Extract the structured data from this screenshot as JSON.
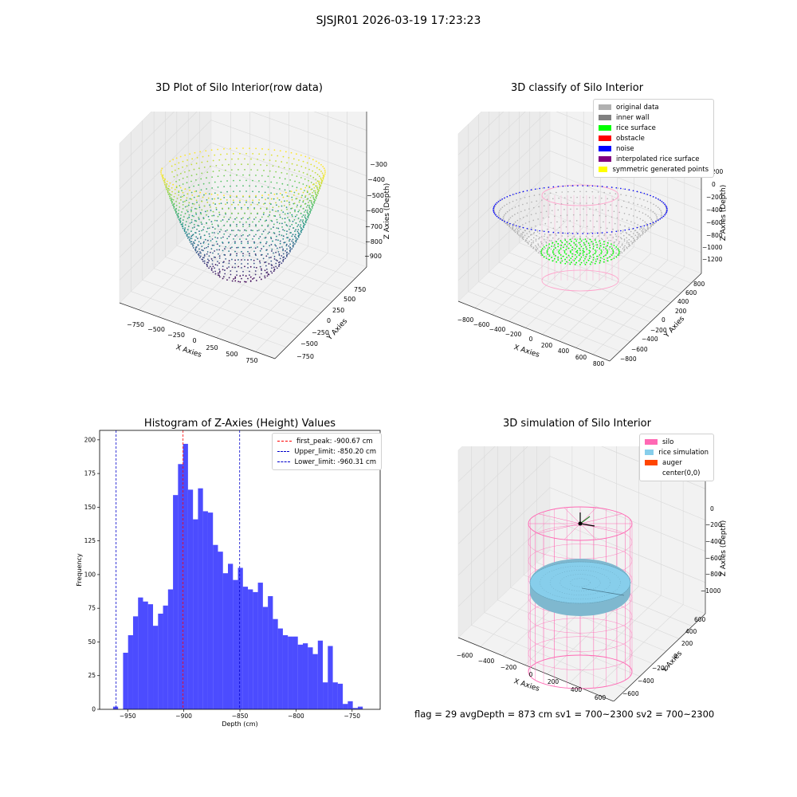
{
  "suptitle": "SJSJR01 2026-03-19 17:23:23",
  "footer": "flag = 29  avgDepth = 873 cm  sv1 = 700~2300  sv2 = 700~2300",
  "colors": {
    "histogram": "#0000ff",
    "first_peak": "#ff0000",
    "limits": "#0000cc",
    "original_data": "#b0b0b0",
    "inner_wall": "#808080",
    "rice_surface": "#00ff00",
    "obstacle": "#ff0000",
    "noise": "#0000ff",
    "interpolated_rice_surface": "#800080",
    "symmetric_generated_points": "#ffff00",
    "silo": "#ff69b4",
    "rice_simulation": "#87ceeb",
    "auger": "#ff4500"
  },
  "panels": {
    "raw": {
      "title": "3D Plot of Silo Interior(row data)",
      "xlabel": "X Axies",
      "ylabel": "Y Axies",
      "zlabel": "Z Axies (Depth)",
      "xticks": [
        "−750",
        "−500",
        "−250",
        "0",
        "250",
        "500",
        "750"
      ],
      "yticks": [
        "−750",
        "−500",
        "−250",
        "0",
        "250",
        "500",
        "750"
      ],
      "zticks": [
        "−300",
        "−400",
        "−500",
        "−600",
        "−700",
        "−800",
        "−900"
      ]
    },
    "classify": {
      "title": "3D classify of Silo Interior",
      "xlabel": "X Axies",
      "ylabel": "Y Axies",
      "zlabel": "Z Axies (Depth)",
      "xticks": [
        "−800",
        "−600",
        "−400",
        "−200",
        "0",
        "200",
        "400",
        "600",
        "800"
      ],
      "yticks": [
        "−800",
        "−600",
        "−400",
        "−200",
        "0",
        "200",
        "400",
        "600",
        "800"
      ],
      "zticks": [
        "200",
        "0",
        "−200",
        "−400",
        "−600",
        "−800",
        "−1000",
        "−1200"
      ],
      "legend": [
        {
          "label": "original data",
          "color": "#b0b0b0"
        },
        {
          "label": "inner wall",
          "color": "#808080"
        },
        {
          "label": "rice surface",
          "color": "#00ff00"
        },
        {
          "label": "obstacle",
          "color": "#ff0000"
        },
        {
          "label": "noise",
          "color": "#0000ff"
        },
        {
          "label": "interpolated rice surface",
          "color": "#800080"
        },
        {
          "label": "symmetric generated points",
          "color": "#ffff00"
        }
      ]
    },
    "simulation": {
      "title": "3D simulation of Silo Interior",
      "xlabel": "X Axies",
      "ylabel": "Y Axies",
      "zlabel": "Z Axies (Depth)",
      "xticks": [
        "−600",
        "−400",
        "−200",
        "0",
        "200",
        "400",
        "600"
      ],
      "yticks": [
        "−600",
        "−400",
        "−200",
        "0",
        "200",
        "400",
        "600"
      ],
      "zticks": [
        "0",
        "−200",
        "−400",
        "−600",
        "−800",
        "−1000"
      ],
      "legend": [
        {
          "label": "silo",
          "color": "#ff69b4"
        },
        {
          "label": "rice simulation",
          "color": "#87ceeb"
        },
        {
          "label": "auger",
          "color": "#ff4500"
        },
        {
          "label": "center(0,0)",
          "color": ""
        }
      ]
    }
  },
  "chart_data": {
    "type": "bar",
    "title": "Histogram of Z-Axies (Height) Values",
    "xlabel": "Depth (cm)",
    "ylabel": "Frequency",
    "xlim": [
      -975,
      -725
    ],
    "ylim": [
      0,
      207
    ],
    "xticks": [
      -950,
      -900,
      -850,
      -800,
      -750
    ],
    "yticks": [
      0,
      25,
      50,
      75,
      100,
      125,
      150,
      175,
      200
    ],
    "bin_start": -963,
    "bin_width": 4.45,
    "values": [
      2,
      0,
      42,
      55,
      69,
      83,
      80,
      78,
      62,
      71,
      77,
      89,
      159,
      182,
      197,
      163,
      141,
      164,
      147,
      146,
      122,
      117,
      101,
      108,
      96,
      105,
      91,
      89,
      87,
      94,
      76,
      84,
      67,
      60,
      55,
      54,
      54,
      48,
      49,
      46,
      41,
      51,
      20,
      47,
      20,
      19,
      4,
      6,
      1,
      2
    ],
    "vlines": [
      {
        "label": "first_peak: -900.67 cm",
        "x": -900.67,
        "color": "#ff0000"
      },
      {
        "label": "Upper_limit: -850.20 cm",
        "x": -850.2,
        "color": "#0000cc"
      },
      {
        "label": "Lower_limit: -960.31 cm",
        "x": -960.31,
        "color": "#0000cc"
      }
    ],
    "grid": false,
    "legend_position": "top-right"
  }
}
